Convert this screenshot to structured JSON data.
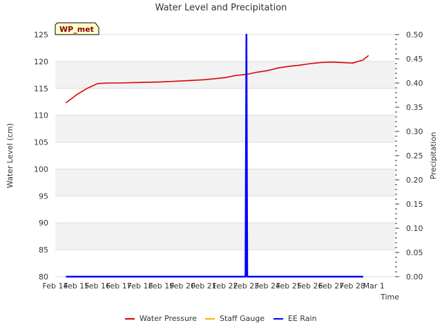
{
  "chart_data": {
    "type": "line",
    "title": "Water Level and Precipitation",
    "site_label": "WP_met",
    "xlabel": "Time",
    "ylabel": "Water Level (cm)",
    "y2label": "Precipitation",
    "xlim": [
      "2024-02-14",
      "2024-03-01"
    ],
    "ylim": [
      80,
      125
    ],
    "y2lim": [
      0,
      0.5
    ],
    "x_ticks": [
      "Feb 14",
      "Feb 15",
      "Feb 16",
      "Feb 17",
      "Feb 18",
      "Feb 19",
      "Feb 20",
      "Feb 21",
      "Feb 22",
      "Feb 23",
      "Feb 24",
      "Feb 25",
      "Feb 26",
      "Feb 27",
      "Feb 28",
      "Mar 1"
    ],
    "y_ticks": [
      80,
      85,
      90,
      95,
      100,
      105,
      110,
      115,
      120,
      125
    ],
    "y2_ticks": [
      "0.00",
      "0.05",
      "0.10",
      "0.15",
      "0.20",
      "0.25",
      "0.30",
      "0.35",
      "0.40",
      "0.45",
      "0.50"
    ],
    "grid": "horizontal bands",
    "legend_position": "bottom",
    "series": [
      {
        "name": "Water Pressure",
        "color": "#dd0000",
        "axis": "left",
        "x": [
          "2024-02-14T12:00",
          "2024-02-15T00:00",
          "2024-02-15T12:00",
          "2024-02-16T00:00",
          "2024-02-16T12:00",
          "2024-02-17T00:00",
          "2024-02-18T00:00",
          "2024-02-19T00:00",
          "2024-02-20T00:00",
          "2024-02-21T00:00",
          "2024-02-21T12:00",
          "2024-02-22T00:00",
          "2024-02-22T12:00",
          "2024-02-23T00:00",
          "2024-02-23T12:00",
          "2024-02-24T00:00",
          "2024-02-24T12:00",
          "2024-02-25T00:00",
          "2024-02-25T12:00",
          "2024-02-26T00:00",
          "2024-02-26T12:00",
          "2024-02-27T00:00",
          "2024-02-27T12:00",
          "2024-02-28T00:00",
          "2024-02-28T12:00",
          "2024-02-28T18:00"
        ],
        "y": [
          112.3,
          113.8,
          115.0,
          115.9,
          116.0,
          116.0,
          116.1,
          116.2,
          116.4,
          116.6,
          116.8,
          117.0,
          117.4,
          117.6,
          118.0,
          118.3,
          118.8,
          119.1,
          119.3,
          119.6,
          119.8,
          119.9,
          119.8,
          119.7,
          120.3,
          121.1
        ]
      },
      {
        "name": "Staff Gauge",
        "color": "#ffaa00",
        "axis": "left",
        "x": [],
        "y": []
      },
      {
        "name": "EE Rain",
        "color": "#0000ff",
        "axis": "right",
        "x": [
          "2024-02-14T12:00",
          "2024-02-22T23:00",
          "2024-02-23T00:00",
          "2024-02-23T01:00",
          "2024-02-28T12:00"
        ],
        "y": [
          0,
          0,
          0.5,
          0,
          0
        ]
      }
    ]
  }
}
